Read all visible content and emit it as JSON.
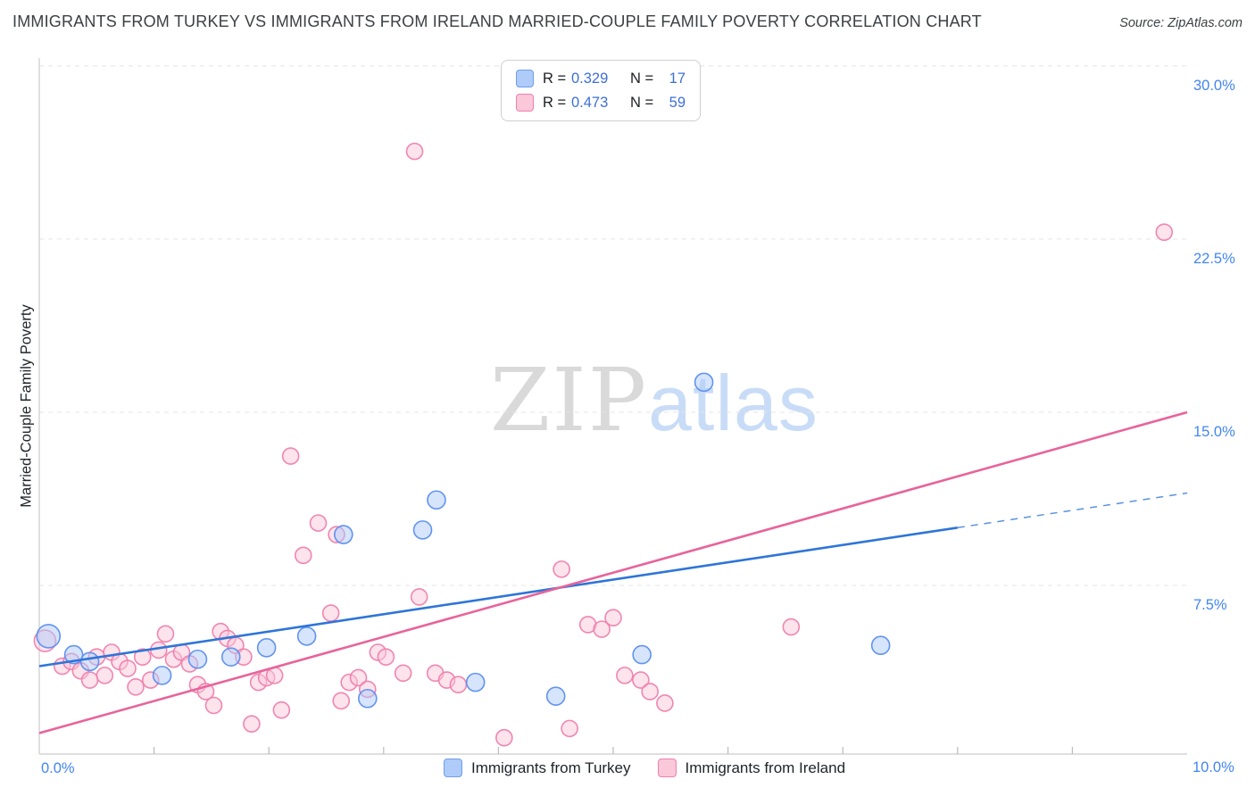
{
  "header": {
    "title": "IMMIGRANTS FROM TURKEY VS IMMIGRANTS FROM IRELAND MARRIED-COUPLE FAMILY POVERTY CORRELATION CHART",
    "source": "Source: ZipAtlas.com"
  },
  "watermark": {
    "zip": "ZIP",
    "atlas": "atlas"
  },
  "correlation_legend": {
    "rows": [
      {
        "series": "Immigrants from Turkey",
        "r_label": "R =",
        "r_value": "0.329",
        "n_label": "N =",
        "n_value": "17",
        "swatch_fill": "#AECBFA",
        "swatch_stroke": "#6D9EEB"
      },
      {
        "series": "Immigrants from Ireland",
        "r_label": "R =",
        "r_value": "0.473",
        "n_label": "N =",
        "n_value": "59",
        "swatch_fill": "#FAC8D9",
        "swatch_stroke": "#F07FAC"
      }
    ]
  },
  "bottom_legend": {
    "items": [
      {
        "label": "Immigrants from Turkey",
        "swatch_fill": "#AECBFA",
        "swatch_stroke": "#6D9EEB"
      },
      {
        "label": "Immigrants from Ireland",
        "swatch_fill": "#FAC8D9",
        "swatch_stroke": "#F07FAC"
      }
    ]
  },
  "chart_data": {
    "type": "scatter",
    "title": "Immigrants from Turkey vs Immigrants from Ireland Married-Couple Family Poverty",
    "ylabel": "Married-Couple Family Poverty",
    "xlim": [
      0,
      10
    ],
    "ylim": [
      0,
      30.5
    ],
    "x_axis_labels": {
      "left": "0.0%",
      "right": "10.0%"
    },
    "yticks": [
      30,
      22.5,
      15,
      7.5
    ],
    "ytick_labels": [
      "30.0%",
      "22.5%",
      "15.0%",
      "7.5%"
    ],
    "grid": "horizontal-dashed",
    "legend_position": "top-center",
    "series": [
      {
        "name": "Immigrants from Ireland",
        "point_name": "ireland-point",
        "fill": "#FAC8D9",
        "stroke": "#F07FAC",
        "points": [
          [
            0.05,
            5.1,
            12
          ],
          [
            0.2,
            4.0,
            9
          ],
          [
            0.28,
            4.2,
            9
          ],
          [
            0.36,
            3.8,
            9
          ],
          [
            0.44,
            3.4,
            9
          ],
          [
            0.5,
            4.4,
            9
          ],
          [
            0.57,
            3.6,
            9
          ],
          [
            0.63,
            4.6,
            9
          ],
          [
            0.7,
            4.2,
            9
          ],
          [
            0.77,
            3.9,
            9
          ],
          [
            0.84,
            3.1,
            9
          ],
          [
            0.9,
            4.4,
            9
          ],
          [
            0.97,
            3.4,
            9
          ],
          [
            1.04,
            4.7,
            9
          ],
          [
            1.1,
            5.4,
            9
          ],
          [
            1.17,
            4.3,
            9
          ],
          [
            1.24,
            4.6,
            9
          ],
          [
            1.31,
            4.1,
            9
          ],
          [
            1.38,
            3.2,
            9
          ],
          [
            1.45,
            2.9,
            9
          ],
          [
            1.52,
            2.3,
            9
          ],
          [
            1.58,
            5.5,
            9
          ],
          [
            1.64,
            5.2,
            9
          ],
          [
            1.71,
            4.9,
            9
          ],
          [
            1.78,
            4.4,
            9
          ],
          [
            1.85,
            1.5,
            9
          ],
          [
            1.91,
            3.3,
            9
          ],
          [
            1.98,
            3.5,
            9
          ],
          [
            2.05,
            3.6,
            9
          ],
          [
            2.11,
            2.1,
            9
          ],
          [
            2.19,
            13.1,
            9
          ],
          [
            2.3,
            8.8,
            9
          ],
          [
            2.43,
            10.2,
            9
          ],
          [
            2.54,
            6.3,
            9
          ],
          [
            2.59,
            9.7,
            9
          ],
          [
            2.63,
            2.5,
            9
          ],
          [
            2.7,
            3.3,
            9
          ],
          [
            2.78,
            3.5,
            9
          ],
          [
            2.86,
            3.0,
            9
          ],
          [
            2.95,
            4.6,
            9
          ],
          [
            3.02,
            4.4,
            9
          ],
          [
            3.17,
            3.7,
            9
          ],
          [
            3.27,
            26.3,
            9
          ],
          [
            3.31,
            7.0,
            9
          ],
          [
            3.45,
            3.7,
            9
          ],
          [
            3.55,
            3.4,
            9
          ],
          [
            3.65,
            3.2,
            9
          ],
          [
            4.05,
            0.9,
            9
          ],
          [
            4.55,
            8.2,
            9
          ],
          [
            4.62,
            1.3,
            9
          ],
          [
            4.78,
            5.8,
            9
          ],
          [
            4.9,
            5.6,
            9
          ],
          [
            5.0,
            6.1,
            9
          ],
          [
            5.1,
            3.6,
            9
          ],
          [
            5.24,
            3.4,
            9
          ],
          [
            5.32,
            2.9,
            9
          ],
          [
            5.45,
            2.4,
            9
          ],
          [
            6.55,
            5.7,
            9
          ],
          [
            9.8,
            22.8,
            9
          ]
        ]
      },
      {
        "name": "Immigrants from Turkey",
        "point_name": "turkey-point",
        "fill": "#AECBFA",
        "stroke": "#5B8DEF",
        "points": [
          [
            0.08,
            5.3,
            13
          ],
          [
            0.3,
            4.5,
            10
          ],
          [
            0.44,
            4.2,
            10
          ],
          [
            1.07,
            3.6,
            10
          ],
          [
            1.38,
            4.3,
            10
          ],
          [
            1.67,
            4.4,
            10
          ],
          [
            1.98,
            4.8,
            10
          ],
          [
            2.33,
            5.3,
            10
          ],
          [
            2.65,
            9.7,
            10
          ],
          [
            2.86,
            2.6,
            10
          ],
          [
            3.34,
            9.9,
            10
          ],
          [
            3.46,
            11.2,
            10
          ],
          [
            3.8,
            3.3,
            10
          ],
          [
            4.5,
            2.7,
            10
          ],
          [
            5.25,
            4.5,
            10
          ],
          [
            5.79,
            16.3,
            10
          ],
          [
            7.33,
            4.9,
            10
          ]
        ]
      }
    ],
    "trend_lines": [
      {
        "series": "Immigrants from Turkey",
        "color": "#2E75D8",
        "dash_color": "#5B93DB",
        "x1": 0,
        "y1": 4.0,
        "x2": 10,
        "y2": 11.5,
        "width": 2.6,
        "solid_until": 8.0
      },
      {
        "series": "Immigrants from Ireland",
        "color": "#E8639B",
        "x1": 0,
        "y1": 1.1,
        "x2": 10,
        "y2": 15.0,
        "width": 2.6
      }
    ]
  }
}
